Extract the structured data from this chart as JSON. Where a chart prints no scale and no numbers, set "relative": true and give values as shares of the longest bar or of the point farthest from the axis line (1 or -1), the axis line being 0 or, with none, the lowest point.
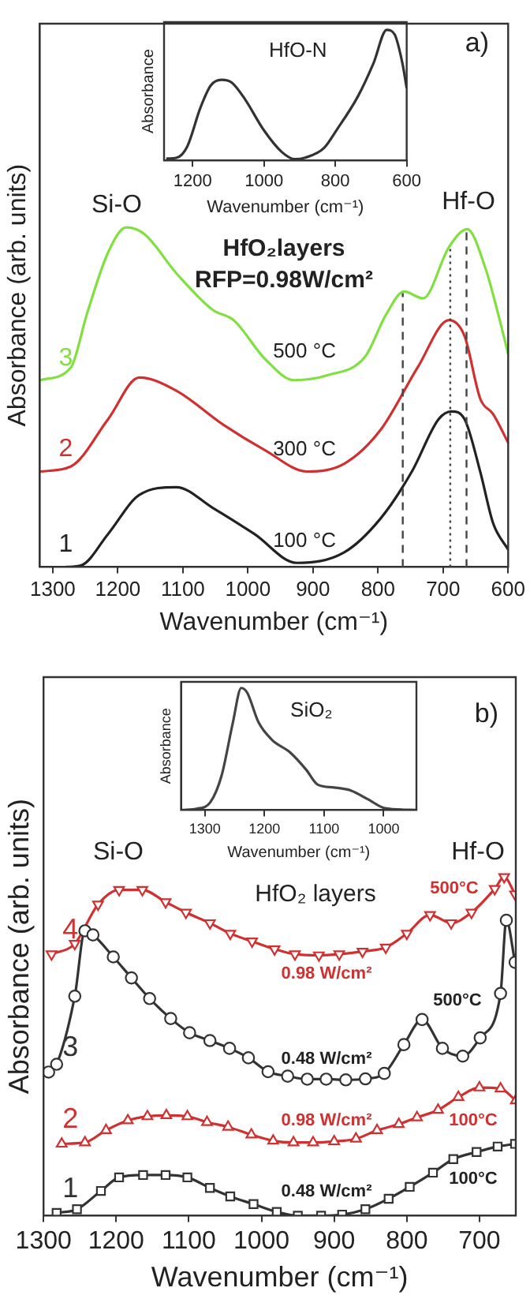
{
  "chart_data": [
    {
      "type": "line",
      "relative": true,
      "xlabel": "Wavenumber (cm⁻¹)",
      "ylabel": "Absorbance (arb. units)",
      "xlim": [
        1320,
        600
      ],
      "xticks": [
        1300,
        1200,
        1100,
        1000,
        900,
        800,
        700,
        600
      ],
      "legend": false,
      "grid": false,
      "marker": "none",
      "line_style": "solid",
      "series": [
        {
          "name": "1",
          "color": "#222222",
          "x": [
            1280,
            1256,
            1215,
            1167,
            1110,
            1054,
            990,
            925,
            852,
            796,
            748,
            707,
            687,
            667,
            643,
            623,
            600
          ],
          "values": [
            0,
            0.005,
            0.097,
            0.212,
            0.235,
            0.174,
            0.097,
            0.012,
            0.043,
            0.143,
            0.281,
            0.435,
            0.458,
            0.435,
            0.281,
            0.128,
            0.051
          ]
        },
        {
          "name": "2",
          "color": "#d03030",
          "x": [
            1320,
            1272,
            1215,
            1167,
            1110,
            1038,
            973,
            909,
            852,
            796,
            739,
            691,
            667,
            643,
            623,
            600
          ],
          "values": [
            0.281,
            0.296,
            0.435,
            0.558,
            0.519,
            0.419,
            0.343,
            0.281,
            0.304,
            0.404,
            0.588,
            0.727,
            0.68,
            0.496,
            0.45,
            0.366
          ]
        },
        {
          "name": "3",
          "color": "#80e040",
          "x": [
            1320,
            1272,
            1248,
            1215,
            1187,
            1159,
            1110,
            1054,
            1022,
            973,
            929,
            877,
            820,
            788,
            760,
            731,
            691,
            663,
            635,
            615,
            600
          ],
          "values": [
            0.55,
            0.588,
            0.742,
            0.926,
            1,
            0.98,
            0.865,
            0.757,
            0.727,
            0.611,
            0.55,
            0.565,
            0.619,
            0.742,
            0.811,
            0.791,
            0.942,
            0.995,
            0.88,
            0.742,
            0.627
          ]
        }
      ],
      "ref_lines": [
        {
          "axis": "x",
          "value": 762,
          "line_style": "dashed",
          "color": "#444444"
        },
        {
          "axis": "x",
          "value": 689,
          "line_style": "dotted",
          "color": "#444444"
        },
        {
          "axis": "x",
          "value": 664,
          "line_style": "dashed",
          "color": "#444444"
        }
      ],
      "annotations": [
        "a)",
        "HfO₂layers",
        "RFP=0.98W/cm²",
        "Si-O",
        "Hf-O",
        "500 °C",
        "300 °C",
        "100 °C"
      ]
    },
    {
      "type": "line",
      "relative": true,
      "title": "HfO-N",
      "xlabel": "Wavenumber (cm⁻¹)",
      "ylabel": "Absorbance",
      "xlim": [
        1280,
        600
      ],
      "xticks": [
        1200,
        1000,
        800,
        600
      ],
      "legend": false,
      "grid": false,
      "marker": "none",
      "series": [
        {
          "color": "#333333",
          "x": [
            1274,
            1244,
            1215,
            1178,
            1149,
            1119,
            1090,
            1053,
            1001,
            950,
            913,
            884,
            832,
            796,
            737,
            693,
            656,
            634,
            612,
            600
          ],
          "values": [
            0.013,
            0.021,
            0.106,
            0.404,
            0.574,
            0.617,
            0.596,
            0.468,
            0.234,
            0.064,
            0.009,
            0.021,
            0.094,
            0.234,
            0.489,
            0.745,
            1,
            0.966,
            0.745,
            0.553
          ]
        }
      ]
    },
    {
      "type": "line",
      "relative": true,
      "xlabel": "Wavenumber (cm⁻¹)",
      "ylabel": "Absorbance (arb. units)",
      "xlim": [
        1300,
        650
      ],
      "xticks": [
        1300,
        1200,
        1100,
        1000,
        900,
        800,
        700
      ],
      "legend": false,
      "grid": false,
      "line_style": "solid",
      "series": [
        {
          "name": "1",
          "color": "#333333",
          "marker": "square",
          "x": [
            1282,
            1254,
            1221,
            1196,
            1163,
            1132,
            1102,
            1071,
            1043,
            1011,
            979,
            950,
            918,
            889,
            857,
            825,
            796,
            764,
            736,
            704,
            675,
            651
          ],
          "values": [
            0.008,
            0.019,
            0.073,
            0.113,
            0.12,
            0.12,
            0.113,
            0.082,
            0.057,
            0.034,
            0.011,
            0,
            0,
            0.003,
            0.019,
            0.05,
            0.085,
            0.127,
            0.167,
            0.188,
            0.204,
            0.212
          ]
        },
        {
          "name": "2",
          "color": "#d03030",
          "marker": "triangle",
          "x": [
            1275,
            1243,
            1214,
            1184,
            1157,
            1131,
            1102,
            1075,
            1046,
            1014,
            984,
            956,
            929,
            900,
            870,
            841,
            811,
            786,
            757,
            729,
            700,
            671,
            650
          ],
          "values": [
            0.212,
            0.216,
            0.252,
            0.281,
            0.293,
            0.296,
            0.293,
            0.276,
            0.262,
            0.239,
            0.221,
            0.216,
            0.216,
            0.219,
            0.227,
            0.252,
            0.27,
            0.29,
            0.312,
            0.35,
            0.378,
            0.375,
            0.34
          ]
        },
        {
          "name": "3",
          "color": "#333333",
          "marker": "circle",
          "x": [
            1293,
            1282,
            1257,
            1243,
            1232,
            1204,
            1179,
            1154,
            1125,
            1099,
            1071,
            1044,
            1018,
            991,
            964,
            937,
            911,
            884,
            857,
            831,
            804,
            779,
            751,
            723,
            699,
            671,
            663,
            651
          ],
          "values": [
            0.424,
            0.447,
            0.648,
            0.841,
            0.829,
            0.764,
            0.702,
            0.641,
            0.582,
            0.54,
            0.517,
            0.494,
            0.466,
            0.425,
            0.412,
            0.403,
            0.403,
            0.401,
            0.404,
            0.42,
            0.505,
            0.579,
            0.494,
            0.471,
            0.525,
            0.656,
            0.872,
            0.748
          ]
        },
        {
          "name": "4",
          "color": "#d03030",
          "marker": "triangle-down",
          "x": [
            1289,
            1257,
            1225,
            1196,
            1164,
            1132,
            1104,
            1071,
            1043,
            1013,
            982,
            954,
            921,
            893,
            861,
            829,
            800,
            768,
            739,
            711,
            679,
            666,
            651
          ],
          "values": [
            0.772,
            0.803,
            0.919,
            0.962,
            0.962,
            0.926,
            0.895,
            0.864,
            0.833,
            0.81,
            0.787,
            0.772,
            0.769,
            0.772,
            0.78,
            0.792,
            0.833,
            0.888,
            0.864,
            0.895,
            0.965,
            1,
            0.949
          ]
        }
      ],
      "annotations": [
        "b)",
        "HfO₂ layers",
        "Si-O",
        "Hf-O",
        "500°C",
        "0.98 W/cm²",
        "500°C",
        "0.48 W/cm²",
        "0.98 W/cm²",
        "100°C",
        "0.48 W/cm²",
        "100°C"
      ]
    },
    {
      "type": "line",
      "relative": true,
      "title": "SiO₂",
      "xlabel": "Wavenumber (cm⁻¹)",
      "ylabel": "Absorbance",
      "xlim": [
        1340,
        945
      ],
      "xticks": [
        1300,
        1200,
        1100,
        1000
      ],
      "legend": false,
      "grid": false,
      "marker": "none",
      "series": [
        {
          "color": "#444444",
          "x": [
            1338,
            1314,
            1291,
            1272,
            1253,
            1239,
            1229,
            1210,
            1187,
            1158,
            1130,
            1111,
            1083,
            1055,
            1026,
            998,
            946
          ],
          "values": [
            0,
            0.01,
            0.063,
            0.282,
            0.718,
            1,
            0.961,
            0.718,
            0.573,
            0.476,
            0.33,
            0.209,
            0.184,
            0.16,
            0.087,
            0.015,
            0
          ]
        }
      ]
    }
  ]
}
